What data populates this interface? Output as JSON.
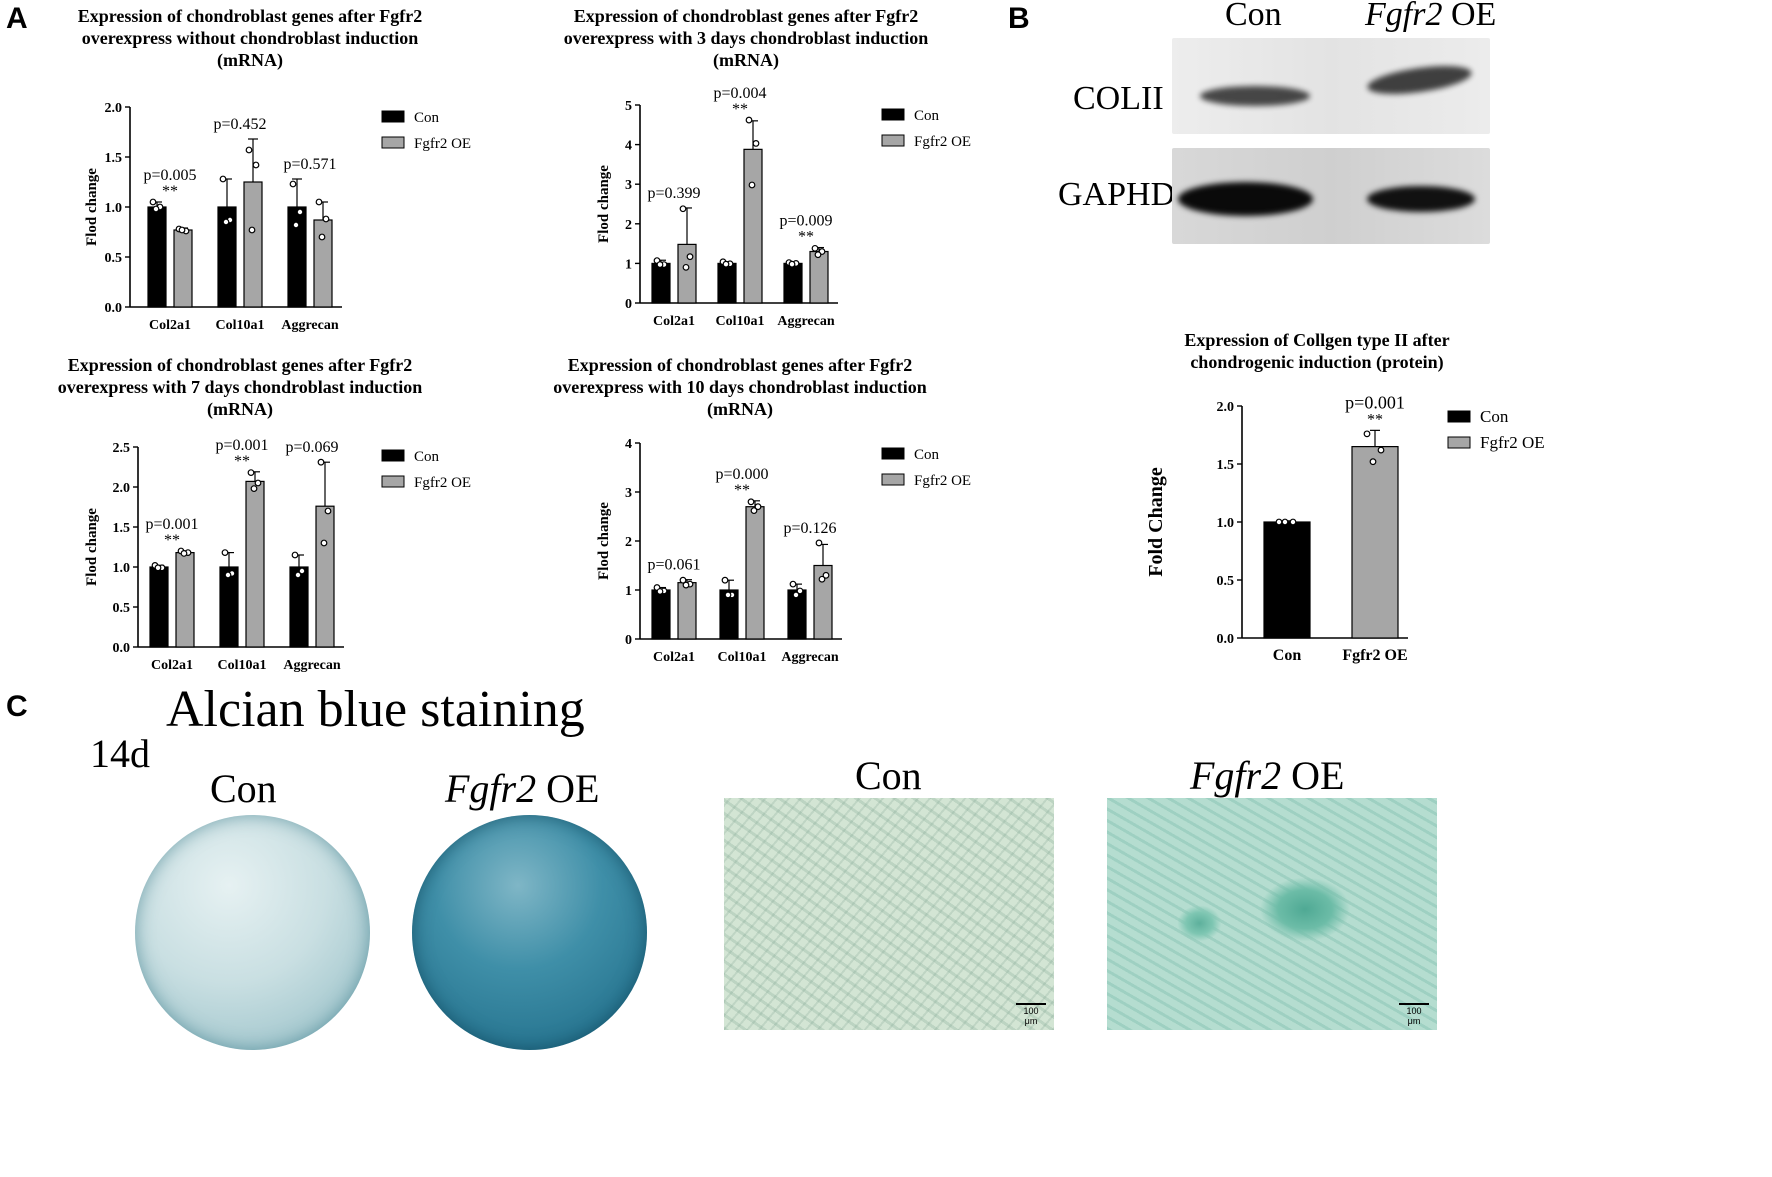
{
  "panels": {
    "a": "A",
    "b": "B",
    "c": "C"
  },
  "colors": {
    "con": "#000000",
    "oe": "#a6a6a6"
  },
  "legend": {
    "con": "Con",
    "oe": "Fgfr2 OE"
  },
  "chart_data": [
    {
      "type": "bar",
      "title": [
        "Expression of chondroblast genes after Fgfr2",
        "overexpress without chondroblast induction",
        "(mRNA)"
      ],
      "ylabel": "Flod change",
      "ylim": [
        0,
        2.0
      ],
      "yticks": [
        "0.0",
        "0.5",
        "1.0",
        "1.5",
        "2.0"
      ],
      "categories": [
        "Col2a1",
        "Col10a1",
        "Aggrecan"
      ],
      "series": [
        {
          "name": "Con",
          "values": [
            1.0,
            1.0,
            1.0
          ],
          "err": [
            0.05,
            0.28,
            0.28
          ],
          "points": [
            [
              1.05,
              1.0,
              0.98
            ],
            [
              1.28,
              0.87,
              0.85
            ],
            [
              1.23,
              0.95,
              0.82
            ]
          ]
        },
        {
          "name": "Fgfr2 OE",
          "values": [
            0.77,
            1.25,
            0.87
          ],
          "err": [
            0.02,
            0.43,
            0.18
          ],
          "points": [
            [
              0.78,
              0.76,
              0.77
            ],
            [
              1.57,
              1.42,
              0.77
            ],
            [
              1.05,
              0.88,
              0.7
            ]
          ]
        }
      ],
      "pvalues": [
        "p=0.005",
        "p=0.452",
        "p=0.571"
      ],
      "stars": [
        "**",
        "",
        ""
      ]
    },
    {
      "type": "bar",
      "title": [
        "Expression of chondroblast genes after Fgfr2",
        "overexpress with 3 days chondroblast induction",
        "(mRNA)"
      ],
      "ylabel": "Flod change",
      "ylim": [
        0,
        5
      ],
      "yticks": [
        "0",
        "1",
        "2",
        "3",
        "4",
        "5"
      ],
      "categories": [
        "Col2a1",
        "Col10a1",
        "Aggrecan"
      ],
      "series": [
        {
          "name": "Con",
          "values": [
            1.0,
            1.0,
            1.0
          ],
          "err": [
            0.08,
            0.04,
            0.03
          ],
          "points": [
            [
              1.07,
              0.97,
              0.97
            ],
            [
              1.04,
              0.99,
              0.98
            ],
            [
              1.02,
              1.0,
              0.98
            ]
          ]
        },
        {
          "name": "Fgfr2 OE",
          "values": [
            1.48,
            3.88,
            1.3
          ],
          "err": [
            0.92,
            0.72,
            0.1
          ],
          "points": [
            [
              2.38,
              1.17,
              0.9
            ],
            [
              4.62,
              4.03,
              2.98
            ],
            [
              1.38,
              1.3,
              1.22
            ]
          ]
        }
      ],
      "pvalues": [
        "p=0.399",
        "p=0.004",
        "p=0.009"
      ],
      "stars": [
        "",
        "**",
        "**"
      ]
    },
    {
      "type": "bar",
      "title": [
        "Expression of chondroblast genes after Fgfr2",
        "overexpress with 7 days chondroblast induction",
        "(mRNA)"
      ],
      "ylabel": "Flod change",
      "ylim": [
        0,
        2.5
      ],
      "yticks": [
        "0.0",
        "0.5",
        "1.0",
        "1.5",
        "2.0",
        "2.5"
      ],
      "categories": [
        "Col2a1",
        "Col10a1",
        "Aggrecan"
      ],
      "series": [
        {
          "name": "Con",
          "values": [
            1.0,
            1.0,
            1.0
          ],
          "err": [
            0.02,
            0.18,
            0.15
          ],
          "points": [
            [
              1.02,
              0.99,
              0.99
            ],
            [
              1.18,
              0.92,
              0.9
            ],
            [
              1.15,
              0.95,
              0.9
            ]
          ]
        },
        {
          "name": "Fgfr2 OE",
          "values": [
            1.18,
            2.07,
            1.76
          ],
          "err": [
            0.02,
            0.12,
            0.55
          ],
          "points": [
            [
              1.2,
              1.18,
              1.17
            ],
            [
              2.18,
              2.05,
              1.98
            ],
            [
              2.31,
              1.7,
              1.3
            ]
          ]
        }
      ],
      "pvalues": [
        "p=0.001",
        "p=0.001",
        "p=0.069"
      ],
      "stars": [
        "**",
        "**",
        ""
      ]
    },
    {
      "type": "bar",
      "title": [
        "Expression of chondroblast genes after Fgfr2",
        "overexpress with 10 days chondroblast induction",
        "(mRNA)"
      ],
      "ylabel": "Flod change",
      "ylim": [
        0,
        4
      ],
      "yticks": [
        "0",
        "1",
        "2",
        "3",
        "4"
      ],
      "categories": [
        "Col2a1",
        "Col10a1",
        "Aggrecan"
      ],
      "series": [
        {
          "name": "Con",
          "values": [
            1.0,
            1.0,
            1.0
          ],
          "err": [
            0.05,
            0.2,
            0.12
          ],
          "points": [
            [
              1.05,
              0.98,
              0.97
            ],
            [
              1.2,
              0.9,
              0.9
            ],
            [
              1.12,
              0.98,
              0.9
            ]
          ]
        },
        {
          "name": "Fgfr2 OE",
          "values": [
            1.15,
            2.7,
            1.5
          ],
          "err": [
            0.06,
            0.12,
            0.43
          ],
          "points": [
            [
              1.2,
              1.12,
              1.1
            ],
            [
              2.8,
              2.7,
              2.62
            ],
            [
              1.96,
              1.3,
              1.22
            ]
          ]
        }
      ],
      "pvalues": [
        "p=0.061",
        "p=0.000",
        "p=0.126"
      ],
      "stars": [
        "",
        "**",
        ""
      ]
    },
    {
      "type": "bar",
      "title": [
        "Expression of Collgen type II after",
        "chondrogenic induction (protein)"
      ],
      "ylabel": "Fold Change",
      "ylim": [
        0,
        2.0
      ],
      "yticks": [
        "0.0",
        "0.5",
        "1.0",
        "1.5",
        "2.0"
      ],
      "categories": [
        "Con",
        "Fgfr2 OE"
      ],
      "values": [
        1.0,
        1.65
      ],
      "err": [
        0.01,
        0.14
      ],
      "points": [
        [
          1.0,
          1.0,
          1.0
        ],
        [
          1.76,
          1.62,
          1.52
        ]
      ],
      "pvalues": [
        "",
        "p=0.001"
      ],
      "stars": [
        "",
        "**"
      ]
    }
  ],
  "western_blot": {
    "col_con": "Con",
    "col_oe_italic": "Fgfr2",
    "col_oe_rest": " OE",
    "row1": "COLII",
    "row2": "GAPHD"
  },
  "staining": {
    "title": "Alcian blue staining",
    "day": "14d",
    "con": "Con",
    "oe_italic": "Fgfr2",
    "oe_rest": " OE",
    "scale": "100 μm"
  }
}
